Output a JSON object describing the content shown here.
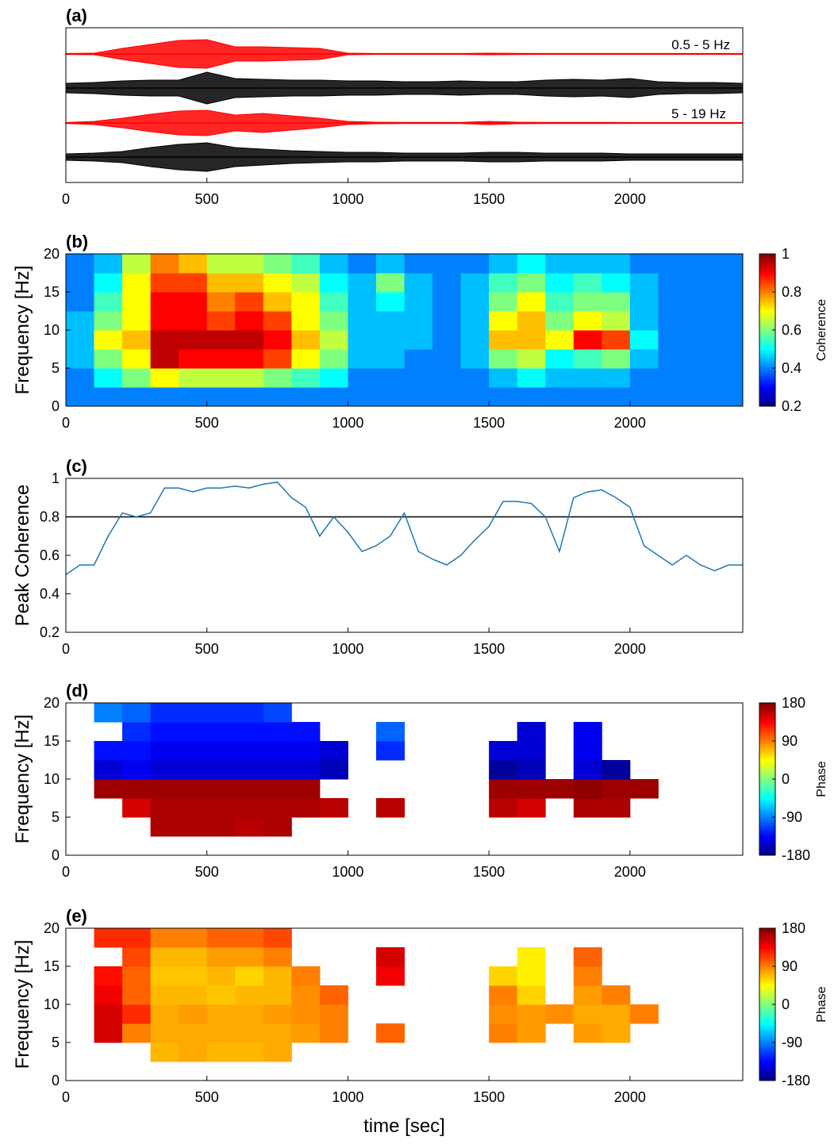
{
  "chart_data": [
    {
      "type": "waveform",
      "title": "(a)",
      "annotations": [
        "0.5 - 5 Hz",
        "5 - 19 Hz"
      ],
      "xlim": [
        0,
        2400
      ],
      "xticks": [
        0,
        500,
        1000,
        1500,
        2000
      ],
      "x": [
        0,
        100,
        200,
        300,
        400,
        500,
        600,
        700,
        800,
        900,
        1000,
        1100,
        1200,
        1300,
        1400,
        1500,
        1600,
        1700,
        1800,
        1900,
        2000,
        2100,
        2200,
        2300,
        2400
      ],
      "series": [
        {
          "color": "#ff0000",
          "values": [
            0.03,
            0.05,
            0.35,
            0.6,
            0.85,
            0.9,
            0.45,
            0.45,
            0.4,
            0.35,
            0.05,
            0.03,
            0.03,
            0.03,
            0.03,
            0.05,
            0.04,
            0.03,
            0.03,
            0.03,
            0.03,
            0.03,
            0.03,
            0.03,
            0.03
          ]
        },
        {
          "color": "#000000",
          "values": [
            0.3,
            0.35,
            0.45,
            0.5,
            0.5,
            1,
            0.6,
            0.55,
            0.5,
            0.5,
            0.45,
            0.45,
            0.4,
            0.4,
            0.45,
            0.4,
            0.4,
            0.5,
            0.55,
            0.5,
            0.6,
            0.4,
            0.35,
            0.35,
            0.3
          ]
        },
        {
          "color": "#ff0000",
          "values": [
            0.03,
            0.1,
            0.3,
            0.55,
            0.75,
            0.8,
            0.5,
            0.6,
            0.45,
            0.3,
            0.1,
            0.05,
            0.04,
            0.04,
            0.04,
            0.1,
            0.05,
            0.04,
            0.04,
            0.04,
            0.03,
            0.03,
            0.03,
            0.03,
            0.03
          ]
        },
        {
          "color": "#000000",
          "values": [
            0.2,
            0.25,
            0.35,
            0.6,
            0.8,
            0.9,
            0.6,
            0.5,
            0.4,
            0.35,
            0.3,
            0.3,
            0.25,
            0.25,
            0.25,
            0.3,
            0.3,
            0.25,
            0.25,
            0.25,
            0.2,
            0.2,
            0.2,
            0.2,
            0.2
          ]
        }
      ]
    },
    {
      "type": "heatmap",
      "title": "(b)",
      "ylabel": "Frequency [Hz]",
      "clabel": "Coherence",
      "xlim": [
        0,
        2400
      ],
      "xticks": [
        0,
        500,
        1000,
        1500,
        2000
      ],
      "ylim": [
        0,
        20
      ],
      "yticks": [
        0,
        5,
        10,
        15,
        20
      ],
      "clim": [
        0.2,
        1
      ],
      "cticks": [
        0.2,
        0.4,
        0.6,
        0.8,
        1
      ],
      "colormap": "jet",
      "xbins": [
        0,
        100,
        200,
        300,
        400,
        500,
        600,
        700,
        800,
        900,
        1000,
        1100,
        1200,
        1300,
        1400,
        1500,
        1600,
        1700,
        1800,
        1900,
        2000,
        2100,
        2200,
        2300,
        2400
      ],
      "ybins": [
        0,
        2.5,
        5,
        7.5,
        10,
        12.5,
        15,
        17.5,
        20
      ],
      "z": [
        [
          0.4,
          0.4,
          0.4,
          0.4,
          0.4,
          0.4,
          0.4,
          0.4,
          0.4,
          0.4,
          0.4,
          0.4,
          0.4,
          0.4,
          0.4,
          0.4,
          0.4,
          0.4,
          0.4,
          0.4,
          0.4,
          0.4,
          0.4,
          0.4
        ],
        [
          0.4,
          0.5,
          0.6,
          0.7,
          0.65,
          0.65,
          0.65,
          0.6,
          0.55,
          0.5,
          0.4,
          0.4,
          0.4,
          0.4,
          0.4,
          0.45,
          0.5,
          0.45,
          0.45,
          0.45,
          0.4,
          0.4,
          0.4,
          0.4
        ],
        [
          0.45,
          0.6,
          0.7,
          0.95,
          0.9,
          0.9,
          0.9,
          0.85,
          0.7,
          0.6,
          0.45,
          0.45,
          0.4,
          0.4,
          0.45,
          0.6,
          0.65,
          0.5,
          0.55,
          0.6,
          0.45,
          0.4,
          0.4,
          0.4
        ],
        [
          0.45,
          0.7,
          0.75,
          0.95,
          0.95,
          0.95,
          0.95,
          0.9,
          0.75,
          0.65,
          0.45,
          0.45,
          0.45,
          0.4,
          0.45,
          0.75,
          0.75,
          0.7,
          0.9,
          0.85,
          0.5,
          0.4,
          0.4,
          0.4
        ],
        [
          0.45,
          0.6,
          0.7,
          0.9,
          0.9,
          0.85,
          0.9,
          0.85,
          0.7,
          0.6,
          0.45,
          0.45,
          0.45,
          0.4,
          0.45,
          0.7,
          0.75,
          0.6,
          0.7,
          0.65,
          0.45,
          0.4,
          0.4,
          0.4
        ],
        [
          0.4,
          0.55,
          0.7,
          0.9,
          0.9,
          0.8,
          0.85,
          0.75,
          0.7,
          0.55,
          0.45,
          0.5,
          0.45,
          0.4,
          0.45,
          0.6,
          0.7,
          0.55,
          0.6,
          0.6,
          0.45,
          0.4,
          0.4,
          0.4
        ],
        [
          0.4,
          0.5,
          0.7,
          0.85,
          0.85,
          0.75,
          0.75,
          0.7,
          0.65,
          0.5,
          0.45,
          0.6,
          0.45,
          0.4,
          0.45,
          0.55,
          0.6,
          0.5,
          0.55,
          0.5,
          0.45,
          0.4,
          0.4,
          0.4
        ],
        [
          0.4,
          0.45,
          0.65,
          0.8,
          0.75,
          0.65,
          0.65,
          0.6,
          0.55,
          0.45,
          0.4,
          0.45,
          0.4,
          0.4,
          0.4,
          0.45,
          0.5,
          0.45,
          0.45,
          0.45,
          0.4,
          0.4,
          0.4,
          0.4
        ]
      ]
    },
    {
      "type": "line",
      "title": "(c)",
      "ylabel": "Peak Coherence",
      "xlim": [
        0,
        2400
      ],
      "xticks": [
        0,
        500,
        1000,
        1500,
        2000
      ],
      "ylim": [
        0.2,
        1
      ],
      "yticks": [
        0.2,
        0.4,
        0.6,
        0.8,
        1
      ],
      "threshold": 0.8,
      "color": "#1f77b4",
      "x": [
        0,
        50,
        100,
        150,
        200,
        250,
        300,
        350,
        400,
        450,
        500,
        550,
        600,
        650,
        700,
        750,
        800,
        850,
        900,
        950,
        1000,
        1050,
        1100,
        1150,
        1200,
        1250,
        1300,
        1350,
        1400,
        1450,
        1500,
        1550,
        1600,
        1650,
        1700,
        1750,
        1800,
        1850,
        1900,
        1950,
        2000,
        2050,
        2100,
        2150,
        2200,
        2250,
        2300,
        2350,
        2400
      ],
      "values": [
        0.5,
        0.55,
        0.55,
        0.7,
        0.82,
        0.8,
        0.82,
        0.95,
        0.95,
        0.93,
        0.95,
        0.95,
        0.96,
        0.95,
        0.97,
        0.98,
        0.9,
        0.85,
        0.7,
        0.8,
        0.72,
        0.62,
        0.65,
        0.7,
        0.82,
        0.62,
        0.58,
        0.55,
        0.6,
        0.68,
        0.75,
        0.88,
        0.88,
        0.87,
        0.8,
        0.62,
        0.9,
        0.93,
        0.94,
        0.9,
        0.85,
        0.65,
        0.6,
        0.55,
        0.6,
        0.55,
        0.52,
        0.55,
        0.55
      ]
    },
    {
      "type": "heatmap",
      "title": "(d)",
      "ylabel": "Frequency [Hz]",
      "clabel": "Phase",
      "xlim": [
        0,
        2400
      ],
      "xticks": [
        0,
        500,
        1000,
        1500,
        2000
      ],
      "ylim": [
        0,
        20
      ],
      "yticks": [
        0,
        5,
        10,
        15,
        20
      ],
      "clim": [
        -180,
        180
      ],
      "cticks": [
        -180,
        -90,
        0,
        90,
        180
      ],
      "colormap": "jet",
      "xbins": [
        0,
        100,
        200,
        300,
        400,
        500,
        600,
        700,
        800,
        900,
        1000,
        1100,
        1200,
        1300,
        1400,
        1500,
        1600,
        1700,
        1800,
        1900,
        2000,
        2100,
        2200,
        2300,
        2400
      ],
      "ybins": [
        0,
        2.5,
        5,
        7.5,
        10,
        12.5,
        15,
        17.5,
        20
      ],
      "z": [
        [
          null,
          null,
          null,
          null,
          null,
          null,
          null,
          null,
          null,
          null,
          null,
          null,
          null,
          null,
          null,
          null,
          null,
          null,
          null,
          null,
          null,
          null,
          null,
          null
        ],
        [
          null,
          null,
          null,
          165,
          165,
          165,
          160,
          165,
          null,
          null,
          null,
          null,
          null,
          null,
          null,
          null,
          null,
          null,
          null,
          null,
          null,
          null,
          null,
          null
        ],
        [
          null,
          null,
          150,
          165,
          165,
          165,
          165,
          165,
          165,
          160,
          null,
          160,
          null,
          null,
          null,
          160,
          150,
          null,
          165,
          165,
          null,
          null,
          null,
          null
        ],
        [
          null,
          170,
          170,
          170,
          170,
          170,
          170,
          170,
          170,
          null,
          null,
          null,
          null,
          null,
          null,
          170,
          170,
          170,
          175,
          170,
          170,
          null,
          null,
          null
        ],
        [
          null,
          -150,
          -140,
          -150,
          -150,
          -150,
          -150,
          -150,
          -150,
          -160,
          null,
          null,
          null,
          null,
          null,
          -170,
          -160,
          null,
          -150,
          -170,
          null,
          null,
          null,
          null
        ],
        [
          null,
          -130,
          -130,
          -140,
          -140,
          -140,
          -140,
          -140,
          -140,
          -150,
          null,
          -120,
          null,
          null,
          null,
          -150,
          -150,
          null,
          -140,
          null,
          null,
          null,
          null,
          null
        ],
        [
          null,
          null,
          -120,
          -130,
          -130,
          -130,
          -130,
          -130,
          -130,
          null,
          null,
          -100,
          null,
          null,
          null,
          null,
          -150,
          null,
          -140,
          null,
          null,
          null,
          null,
          null
        ],
        [
          null,
          -90,
          -100,
          -120,
          -120,
          -120,
          -120,
          -110,
          null,
          null,
          null,
          null,
          null,
          null,
          null,
          null,
          null,
          null,
          null,
          null,
          null,
          null,
          null,
          null
        ]
      ]
    },
    {
      "type": "heatmap",
      "title": "(e)",
      "ylabel": "Frequency [Hz]",
      "xlabel": "time [sec]",
      "clabel": "Phase",
      "xlim": [
        0,
        2400
      ],
      "xticks": [
        0,
        500,
        1000,
        1500,
        2000
      ],
      "ylim": [
        0,
        20
      ],
      "yticks": [
        0,
        5,
        10,
        15,
        20
      ],
      "clim": [
        -180,
        180
      ],
      "cticks": [
        -180,
        -90,
        0,
        90,
        180
      ],
      "colormap": "jet",
      "xbins": [
        0,
        100,
        200,
        300,
        400,
        500,
        600,
        700,
        800,
        900,
        1000,
        1100,
        1200,
        1300,
        1400,
        1500,
        1600,
        1700,
        1800,
        1900,
        2000,
        2100,
        2200,
        2300,
        2400
      ],
      "ybins": [
        0,
        2.5,
        5,
        7.5,
        10,
        12.5,
        15,
        17.5,
        20
      ],
      "z": [
        [
          null,
          null,
          null,
          null,
          null,
          null,
          null,
          null,
          null,
          null,
          null,
          null,
          null,
          null,
          null,
          null,
          null,
          null,
          null,
          null,
          null,
          null,
          null,
          null
        ],
        [
          null,
          null,
          null,
          70,
          75,
          70,
          70,
          75,
          null,
          null,
          null,
          null,
          null,
          null,
          null,
          null,
          null,
          null,
          null,
          null,
          null,
          null,
          null,
          null
        ],
        [
          null,
          150,
          90,
          75,
          75,
          75,
          75,
          75,
          80,
          90,
          null,
          100,
          null,
          null,
          null,
          90,
          80,
          null,
          80,
          75,
          null,
          null,
          null,
          null
        ],
        [
          null,
          150,
          120,
          75,
          80,
          75,
          75,
          80,
          85,
          90,
          null,
          null,
          null,
          null,
          null,
          85,
          80,
          85,
          75,
          75,
          90,
          null,
          null,
          null
        ],
        [
          null,
          140,
          100,
          70,
          70,
          65,
          70,
          70,
          85,
          100,
          null,
          null,
          null,
          null,
          null,
          90,
          60,
          null,
          80,
          90,
          null,
          null,
          null,
          null
        ],
        [
          null,
          130,
          100,
          65,
          65,
          70,
          60,
          70,
          90,
          null,
          null,
          140,
          null,
          null,
          null,
          60,
          50,
          null,
          90,
          null,
          null,
          null,
          null,
          null
        ],
        [
          null,
          null,
          110,
          70,
          70,
          80,
          80,
          90,
          null,
          null,
          null,
          150,
          null,
          null,
          null,
          null,
          50,
          null,
          100,
          null,
          null,
          null,
          null,
          null
        ],
        [
          null,
          120,
          120,
          90,
          90,
          100,
          100,
          110,
          null,
          null,
          null,
          null,
          null,
          null,
          null,
          null,
          null,
          null,
          null,
          null,
          null,
          null,
          null,
          null
        ]
      ]
    }
  ]
}
